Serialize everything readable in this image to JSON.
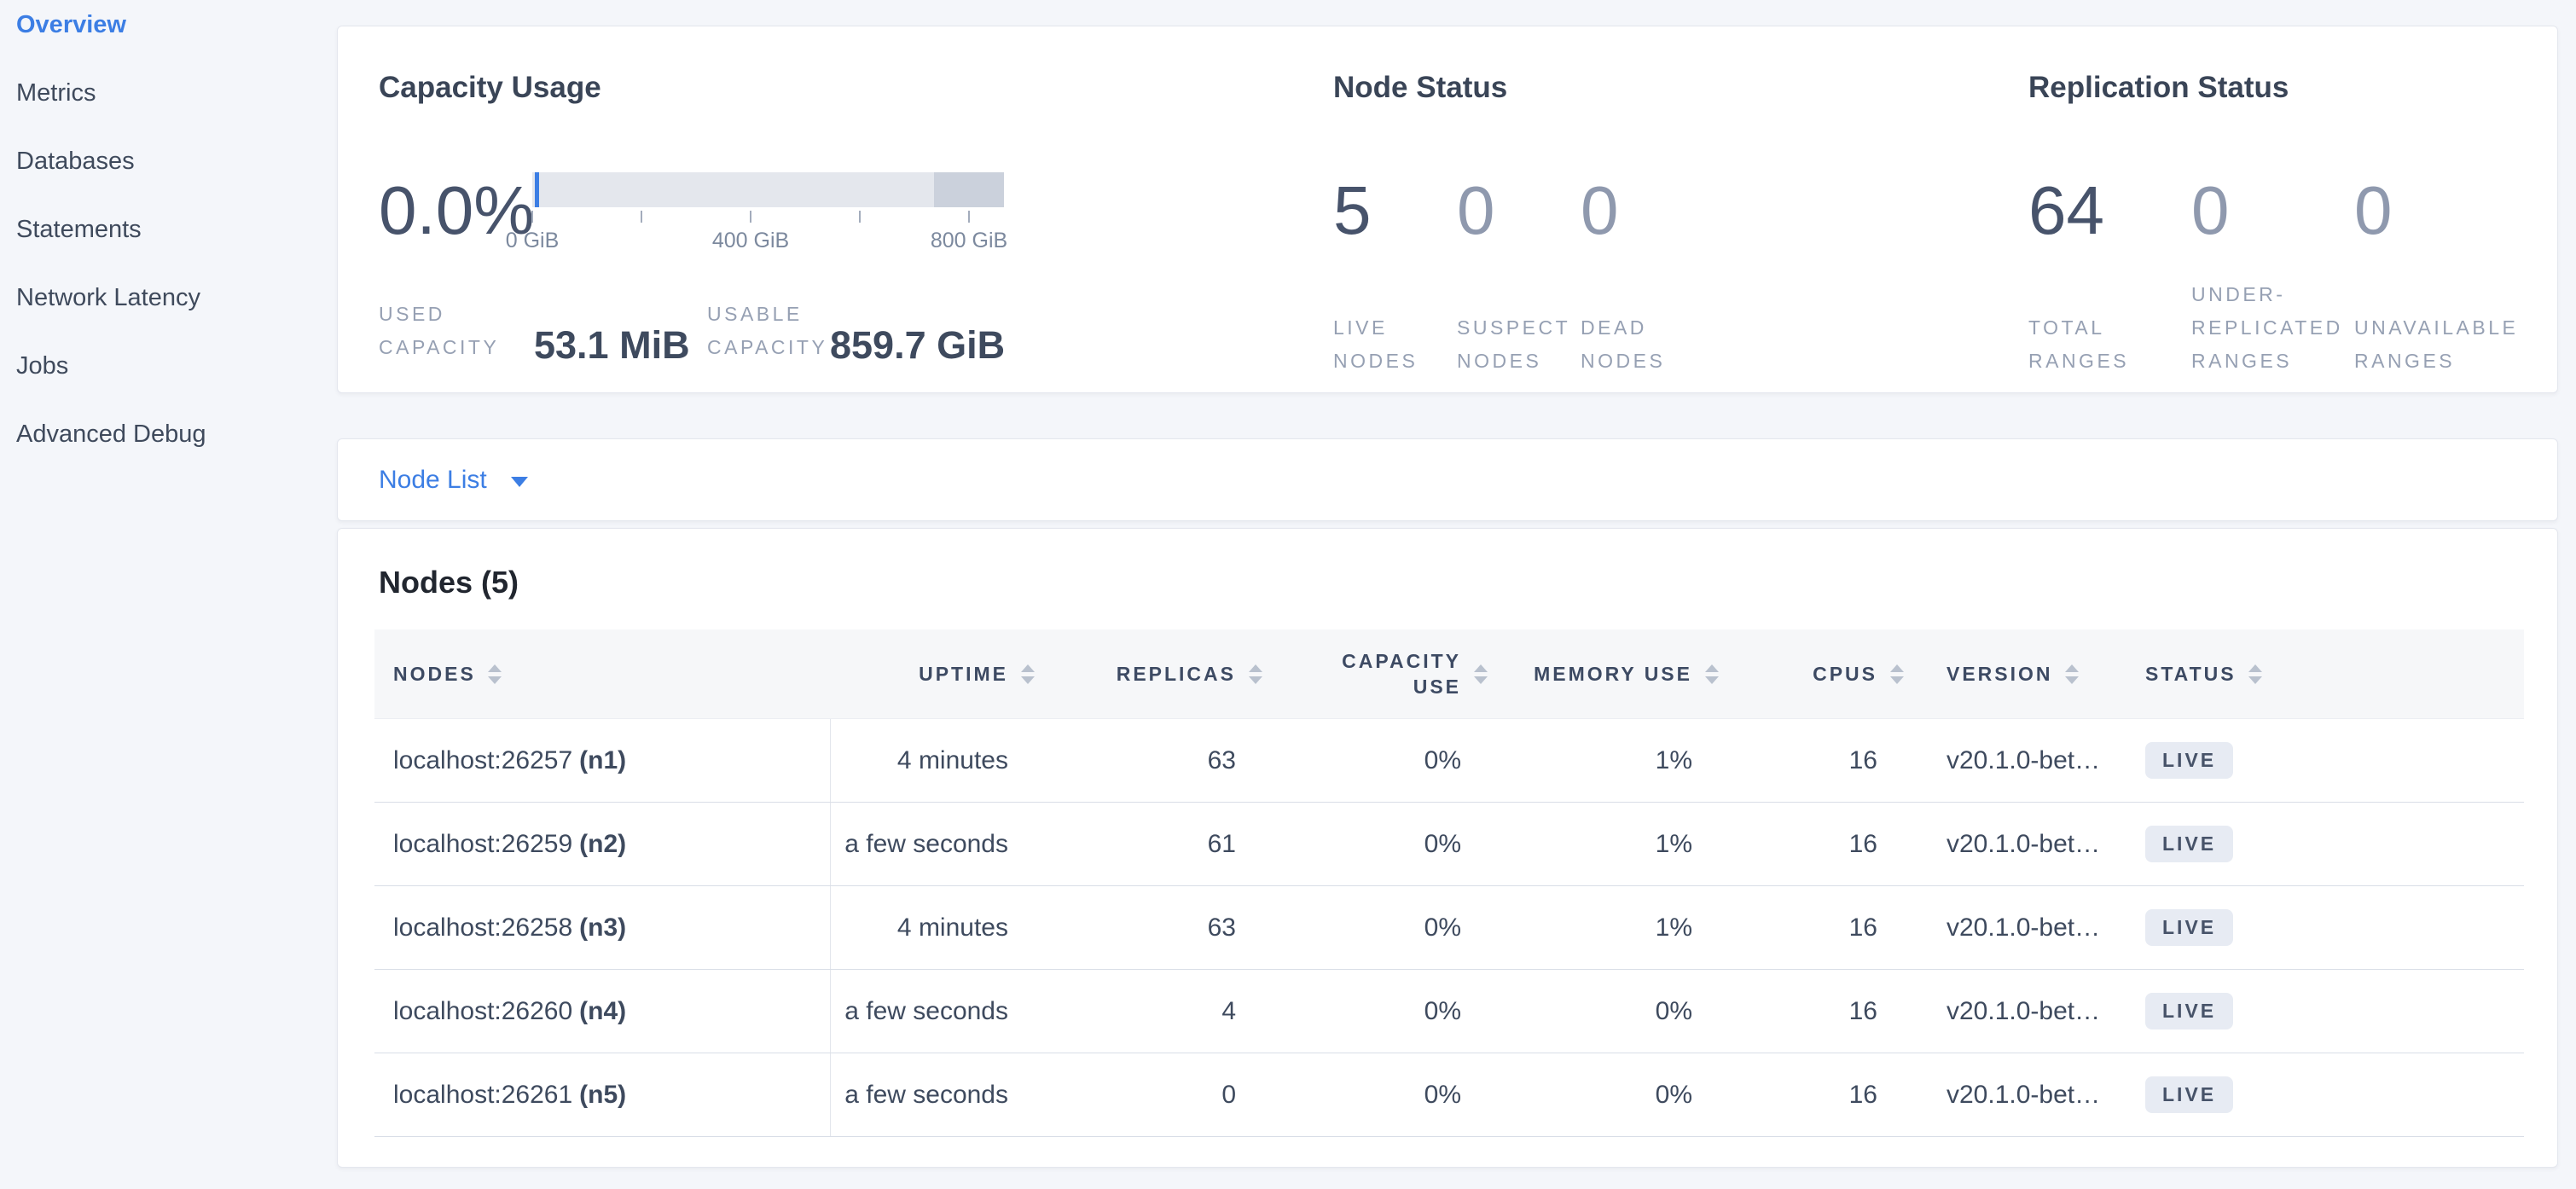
{
  "colors": {
    "accent_blue": "#3C7EE4",
    "badge_bg": "#E7EBF3",
    "bar_light": "#E4E7ED",
    "bar_dark": "#CBD1DC"
  },
  "sidebar": {
    "items": [
      {
        "label": "Overview",
        "active": true
      },
      {
        "label": "Metrics",
        "active": false
      },
      {
        "label": "Databases",
        "active": false
      },
      {
        "label": "Statements",
        "active": false
      },
      {
        "label": "Network Latency",
        "active": false
      },
      {
        "label": "Jobs",
        "active": false
      },
      {
        "label": "Advanced Debug",
        "active": false
      }
    ]
  },
  "overview": {
    "capacity": {
      "title": "Capacity Usage",
      "percent": "0.0%",
      "used_label": "USED CAPACITY",
      "used_value": "53.1 MiB",
      "usable_label": "USABLE CAPACITY",
      "usable_value": "859.7 GiB",
      "axis": {
        "max_gib": 864,
        "ticks": [
          {
            "gib": 0,
            "label": "0 GiB"
          },
          {
            "gib": 200
          },
          {
            "gib": 400,
            "label": "400 GiB"
          },
          {
            "gib": 600
          },
          {
            "gib": 800,
            "label": "800 GiB"
          }
        ]
      }
    },
    "node_status": {
      "title": "Node Status",
      "stats": [
        {
          "value": "5",
          "label": "LIVE NODES",
          "zero": false
        },
        {
          "value": "0",
          "label": "SUSPECT NODES",
          "zero": true
        },
        {
          "value": "0",
          "label": "DEAD NODES",
          "zero": true
        }
      ]
    },
    "replication": {
      "title": "Replication Status",
      "stats": [
        {
          "value": "64",
          "label": "TOTAL RANGES",
          "zero": false
        },
        {
          "value": "0",
          "label": "UNDER-REPLICATED RANGES",
          "zero": true
        },
        {
          "value": "0",
          "label": "UNAVAILABLE RANGES",
          "zero": true
        }
      ]
    }
  },
  "node_list": {
    "label": "Node List"
  },
  "table": {
    "title": "Nodes (5)",
    "columns": [
      {
        "label": "NODES"
      },
      {
        "label": "UPTIME"
      },
      {
        "label": "REPLICAS"
      },
      {
        "label": "CAPACITY USE"
      },
      {
        "label": "MEMORY USE"
      },
      {
        "label": "CPUS"
      },
      {
        "label": "VERSION"
      },
      {
        "label": "STATUS"
      }
    ],
    "rows": [
      {
        "addr": "localhost:26257",
        "id": "(n1)",
        "uptime": "4 minutes",
        "replicas": "63",
        "capacity": "0%",
        "memory": "1%",
        "cpus": "16",
        "version": "v20.1.0-bet…",
        "status": "LIVE"
      },
      {
        "addr": "localhost:26259",
        "id": "(n2)",
        "uptime": "a few seconds",
        "replicas": "61",
        "capacity": "0%",
        "memory": "1%",
        "cpus": "16",
        "version": "v20.1.0-bet…",
        "status": "LIVE"
      },
      {
        "addr": "localhost:26258",
        "id": "(n3)",
        "uptime": "4 minutes",
        "replicas": "63",
        "capacity": "0%",
        "memory": "1%",
        "cpus": "16",
        "version": "v20.1.0-bet…",
        "status": "LIVE"
      },
      {
        "addr": "localhost:26260",
        "id": "(n4)",
        "uptime": "a few seconds",
        "replicas": "4",
        "capacity": "0%",
        "memory": "0%",
        "cpus": "16",
        "version": "v20.1.0-bet…",
        "status": "LIVE"
      },
      {
        "addr": "localhost:26261",
        "id": "(n5)",
        "uptime": "a few seconds",
        "replicas": "0",
        "capacity": "0%",
        "memory": "0%",
        "cpus": "16",
        "version": "v20.1.0-bet…",
        "status": "LIVE"
      }
    ]
  }
}
